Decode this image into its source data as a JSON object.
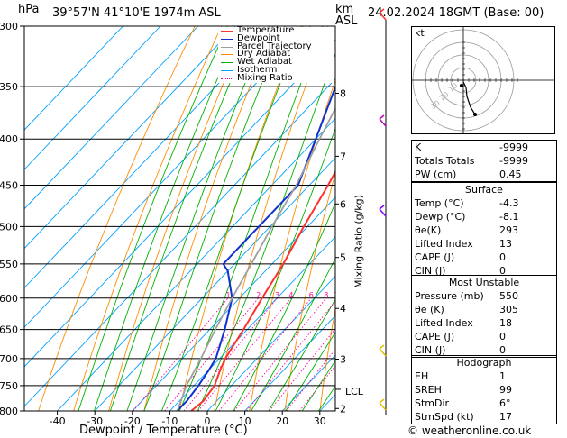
{
  "header": {
    "hpa_unit": "hPa",
    "location": "39°57'N  41°10'E  1974m  ASL",
    "km_label": "km",
    "asl_label": "ASL",
    "datetime": "24.02.2024  18GMT  (Base: 00)"
  },
  "legend": [
    "Temperature",
    "Dewpoint",
    "Parcel Trajectory",
    "Dry Adiabat",
    "Wet Adiabat",
    "Isotherm",
    "Mixing Ratio"
  ],
  "legend_colors": [
    "#ff3030",
    "#1030d0",
    "#a0a0a0",
    "#ff8c00",
    "#00b000",
    "#00a0ff",
    "#ff00a0"
  ],
  "xaxis_title": "Dewpoint / Temperature (°C)",
  "mixing_ratio_title": "Mixing Ratio (g/kg)",
  "lcl_label": "LCL",
  "credit": "© weatheronline.co.uk",
  "chart_data": {
    "type": "line",
    "pressure_levels": [
      300,
      350,
      400,
      450,
      500,
      550,
      600,
      650,
      700,
      750,
      800
    ],
    "temperature_ticks": [
      -40,
      -30,
      -20,
      -10,
      0,
      10,
      20,
      30
    ],
    "km_ticks": [
      {
        "label": "8",
        "p": 356
      },
      {
        "label": "7",
        "p": 418
      },
      {
        "label": "6",
        "p": 472
      },
      {
        "label": "5",
        "p": 541
      },
      {
        "label": "4",
        "p": 616
      },
      {
        "label": "3",
        "p": 701
      },
      {
        "label": "2",
        "p": 795
      }
    ],
    "mixing_ratio_labels": [
      "1",
      "2",
      "3",
      "4",
      "6",
      "8",
      "10",
      "15",
      "20",
      "25"
    ],
    "mixing_ratio_values": [
      1,
      2,
      3,
      4,
      6,
      8,
      10,
      15,
      20,
      25
    ],
    "series": [
      {
        "name": "Temperature",
        "points": [
          [
            800,
            -4.3
          ],
          [
            780,
            -3.6
          ],
          [
            750,
            -4.5
          ],
          [
            720,
            -7
          ],
          [
            700,
            -8.5
          ],
          [
            650,
            -11
          ],
          [
            600,
            -14
          ],
          [
            550,
            -17
          ],
          [
            500,
            -21
          ],
          [
            450,
            -25
          ],
          [
            400,
            -30
          ],
          [
            350,
            -37
          ],
          [
            300,
            -45
          ]
        ]
      },
      {
        "name": "Dewpoint",
        "points": [
          [
            800,
            -8.1
          ],
          [
            780,
            -8
          ],
          [
            750,
            -8.8
          ],
          [
            720,
            -10
          ],
          [
            700,
            -11
          ],
          [
            650,
            -16
          ],
          [
            600,
            -22
          ],
          [
            560,
            -30
          ],
          [
            550,
            -33
          ],
          [
            500,
            -33
          ],
          [
            450,
            -33
          ],
          [
            400,
            -40
          ],
          [
            350,
            -48
          ],
          [
            300,
            -55
          ]
        ]
      },
      {
        "name": "Parcel Trajectory",
        "points": [
          [
            800,
            -8
          ],
          [
            750,
            -12
          ],
          [
            700,
            -15
          ],
          [
            650,
            -18.5
          ],
          [
            600,
            -22
          ],
          [
            550,
            -25.5
          ],
          [
            500,
            -29.5
          ],
          [
            450,
            -33.5
          ],
          [
            400,
            -39
          ],
          [
            350,
            -45
          ],
          [
            300,
            -52
          ]
        ]
      }
    ],
    "xlim": [
      -45,
      35
    ],
    "ylim": [
      300,
      800
    ],
    "lcl_pressure": 757
  },
  "hodograph": {
    "unit": "kt",
    "ring_labels": [
      "10",
      "20",
      "30"
    ]
  },
  "indices": {
    "k_label": "K",
    "k_value": "-9999",
    "tt_label": "Totals Totals",
    "tt_value": "-9999",
    "pw_label": "PW (cm)",
    "pw_value": "0.45"
  },
  "surface": {
    "title": "Surface",
    "rows": [
      {
        "label": "Temp (°C)",
        "value": "-4.3"
      },
      {
        "label": "Dewp (°C)",
        "value": "-8.1"
      },
      {
        "label": "θe(K)",
        "value": "293"
      },
      {
        "label": "Lifted Index",
        "value": "13"
      },
      {
        "label": "CAPE (J)",
        "value": "0"
      },
      {
        "label": "CIN (J)",
        "value": "0"
      }
    ]
  },
  "most_unstable": {
    "title": "Most Unstable",
    "rows": [
      {
        "label": "Pressure (mb)",
        "value": "550"
      },
      {
        "label": "θe (K)",
        "value": "305"
      },
      {
        "label": "Lifted Index",
        "value": "18"
      },
      {
        "label": "CAPE (J)",
        "value": "0"
      },
      {
        "label": "CIN (J)",
        "value": "0"
      }
    ]
  },
  "hodograph_table": {
    "title": "Hodograph",
    "rows": [
      {
        "label": "EH",
        "value": "1"
      },
      {
        "label": "SREH",
        "value": "99"
      },
      {
        "label": "StmDir",
        "value": "6°"
      },
      {
        "label": "StmSpd (kt)",
        "value": "17"
      }
    ]
  }
}
